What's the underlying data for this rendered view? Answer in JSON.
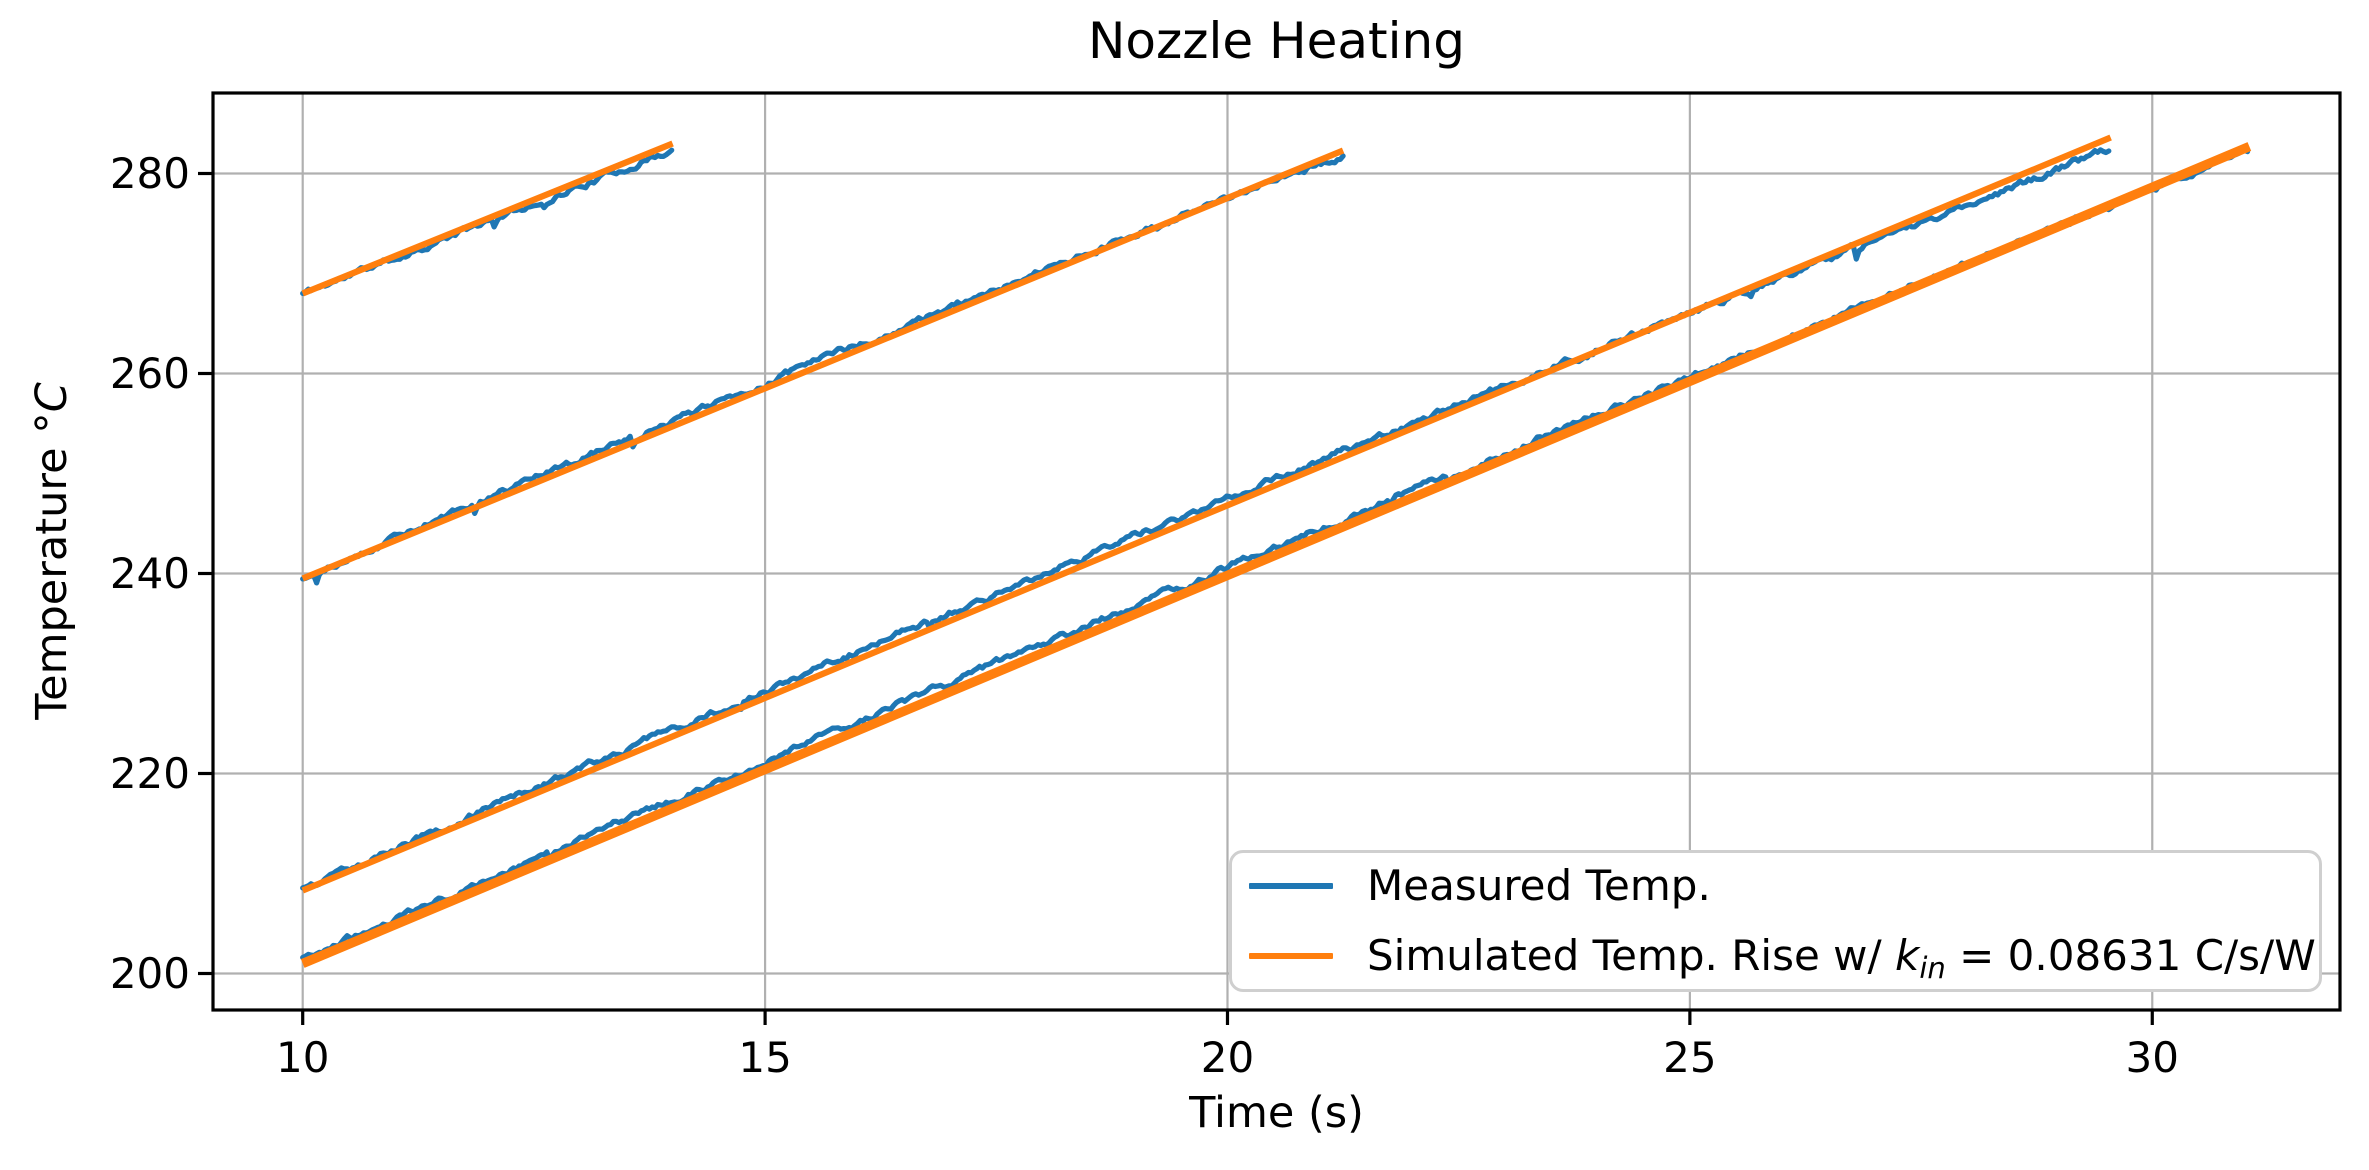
{
  "title": "Nozzle Heating",
  "axes": {
    "xlabel": "Time (s)",
    "ylabel": {
      "prefix": "Temperature ",
      "degree": "°",
      "unit": "C"
    }
  },
  "legend": {
    "entries": [
      {
        "label": "Measured Temp.",
        "color": "#1f77b4"
      },
      {
        "prefix": "Simulated Temp. Rise w/ ",
        "var": "k",
        "var_sub": "in",
        "suffix": " = 0.08631 C/s/W",
        "color": "#ff7f0e"
      }
    ]
  },
  "chart_data": {
    "type": "line",
    "title": "Nozzle Heating",
    "xlabel": "Time (s)",
    "ylabel": "Temperature °C",
    "xlim": [
      9.03,
      32.03
    ],
    "ylim": [
      196.35,
      288.05
    ],
    "x_ticks": [
      10,
      15,
      20,
      25,
      30
    ],
    "y_ticks": [
      200,
      220,
      240,
      260,
      280
    ],
    "grid": true,
    "legend_position": "lower right",
    "k_in": 0.08631,
    "colors": {
      "measured": "#1f77b4",
      "simulated": "#ff7f0e",
      "grid": "#b0b0b0",
      "spine": "#000000"
    },
    "series_names": [
      "Measured Temp.",
      "Simulated Temp. Rise w/ k_in = 0.08631 C/s/W"
    ],
    "ramps": [
      {
        "t_start": 10.0,
        "t_end": 14.0,
        "sim_temp_start": 268.0,
        "sim_temp_end": 283.0,
        "measured_dev": [
          0.0,
          -0.35,
          -0.6
        ],
        "sim_linewidth": 6.3,
        "seed": 11
      },
      {
        "t_start": 10.0,
        "t_end": 21.25,
        "sim_temp_start": 239.5,
        "sim_temp_end": 282.3,
        "measured_dev": [
          0.1,
          0.5,
          -0.4
        ],
        "sim_linewidth": 6.3,
        "seed": 29
      },
      {
        "t_start": 10.0,
        "t_end": 29.55,
        "sim_temp_start": 208.3,
        "sim_temp_end": 283.6,
        "measured_dev": [
          0.2,
          0.7,
          -1.2
        ],
        "sim_linewidth": 6.3,
        "seed": 47
      },
      {
        "t_start": 10.0,
        "t_end": 31.05,
        "sim_temp_start": 201.0,
        "sim_temp_end": 282.7,
        "measured_dev": [
          0.5,
          0.8,
          -0.3
        ],
        "sim_linewidth": 9.4,
        "seed": 83
      }
    ],
    "noise": {
      "sigma": 0.23,
      "clamp": 0.72,
      "spike_prob": 0.005,
      "spike_depth": [
        0.5,
        1.3
      ],
      "step_s": 0.03
    }
  }
}
